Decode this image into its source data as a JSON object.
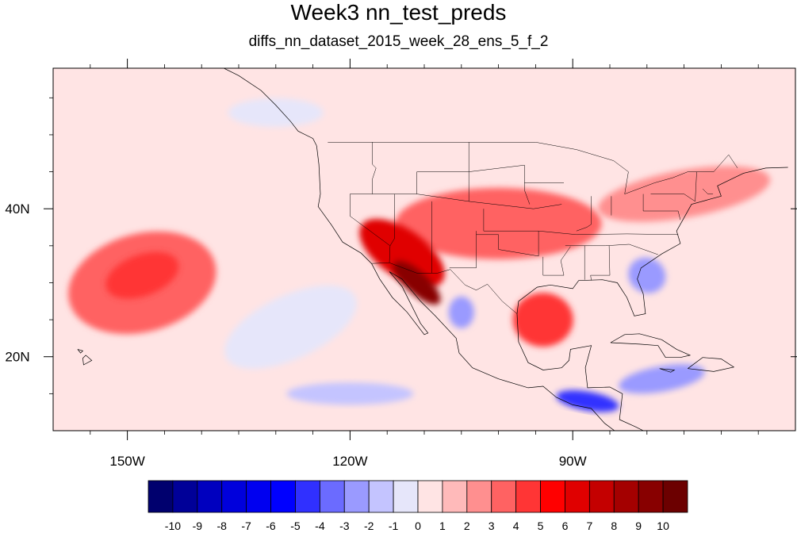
{
  "chart_data": {
    "type": "heatmap",
    "title": "Week3 nn_test_preds",
    "subtitle": "diffs_nn_dataset_2015_week_28_ens_5_f_2",
    "map_extent": {
      "lon": [
        -160,
        -60
      ],
      "lat": [
        10,
        59
      ]
    },
    "x_ticks": [
      {
        "lon": -150,
        "label": "150W"
      },
      {
        "lon": -120,
        "label": "120W"
      },
      {
        "lon": -90,
        "label": "90W"
      }
    ],
    "y_ticks": [
      {
        "lat": 40,
        "label": "40N"
      },
      {
        "lat": 20,
        "label": "20N"
      }
    ],
    "colorbar": {
      "labels": [
        "-10",
        "-9",
        "-8",
        "-7",
        "-6",
        "-5",
        "-4",
        "-3",
        "-2",
        "-1",
        "0",
        "1",
        "2",
        "3",
        "4",
        "5",
        "6",
        "7",
        "8",
        "9",
        "10"
      ],
      "colors": [
        "#00006e",
        "#000098",
        "#0000bf",
        "#0000dc",
        "#0000f0",
        "#0000ff",
        "#3030ff",
        "#6b6bff",
        "#9a9aff",
        "#c4c4ff",
        "#e6e6fa",
        "#ffe4e4",
        "#ffbaba",
        "#ff8f8f",
        "#ff6262",
        "#ff3535",
        "#ff0000",
        "#e00000",
        "#c40000",
        "#a40000",
        "#880000",
        "#6c0000"
      ]
    },
    "regions": [
      {
        "name": "background",
        "value": 0.5
      },
      {
        "name": "north-pacific-warm",
        "lon": -148,
        "lat": 30,
        "value": 3
      },
      {
        "name": "north-pacific-core",
        "lon": -148,
        "lat": 31,
        "value": 4
      },
      {
        "name": "southwest-us-hot",
        "lon": -113,
        "lat": 34,
        "value": 6
      },
      {
        "name": "baja-core",
        "lon": -111,
        "lat": 30,
        "value": 9
      },
      {
        "name": "gulf-of-mexico-warm",
        "lon": -94,
        "lat": 25,
        "value": 4
      },
      {
        "name": "great-plains-warm",
        "lon": -100,
        "lat": 38,
        "value": 3
      },
      {
        "name": "northeast-warm",
        "lon": -75,
        "lat": 42,
        "value": 2
      },
      {
        "name": "southeast-cool",
        "lon": -80,
        "lat": 31,
        "value": -3
      },
      {
        "name": "gulf-coast-cool",
        "lon": -105,
        "lat": 26,
        "value": -3
      },
      {
        "name": "central-america-cool",
        "lon": -88,
        "lat": 14,
        "value": -5
      },
      {
        "name": "caribbean-cool",
        "lon": -78,
        "lat": 17,
        "value": -3
      },
      {
        "name": "tropical-pacific-cool",
        "lon": -120,
        "lat": 15,
        "value": -2
      },
      {
        "name": "east-pacific-cool",
        "lon": -128,
        "lat": 24,
        "value": -1
      },
      {
        "name": "alaska-gulf-cool",
        "lon": -130,
        "lat": 53,
        "value": -1
      }
    ]
  }
}
